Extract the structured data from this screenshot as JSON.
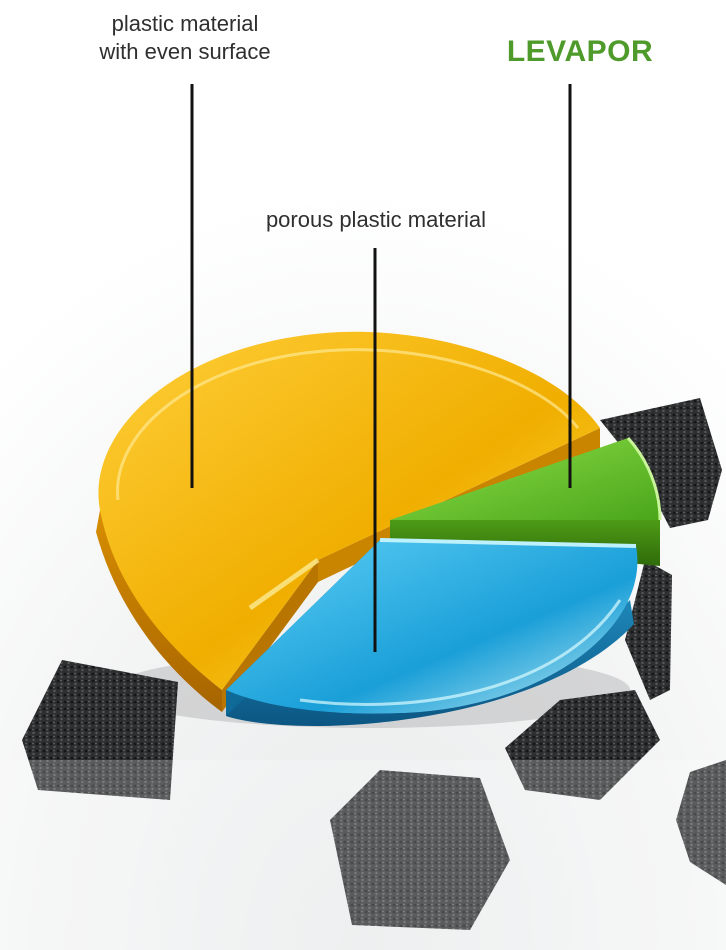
{
  "chart_data": {
    "type": "pie",
    "style": "3d-exploded",
    "slices": [
      {
        "label_lines": [
          "plastic material",
          "with even surface"
        ],
        "color": "#f3b800"
      },
      {
        "label_lines": [
          "porous plastic material"
        ],
        "color": "#1ea6dc"
      },
      {
        "label_lines": [
          "LEVAPOR"
        ],
        "color": "#6ec22a",
        "label_color": "#4e9a2a"
      }
    ],
    "background_objects": "black porous foam cubes"
  }
}
